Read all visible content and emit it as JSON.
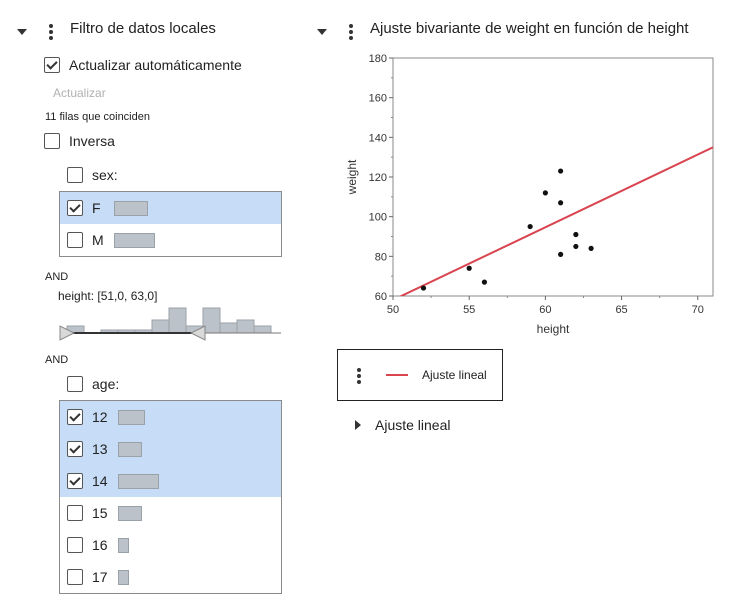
{
  "filter": {
    "title": "Filtro de datos locales",
    "auto_update_label": "Actualizar automáticamente",
    "update_button": "Actualizar",
    "matching_rows": "11 filas que coinciden",
    "inverse_label": "Inversa",
    "sex": {
      "label": "sex:",
      "items": [
        {
          "label": "F",
          "checked": true,
          "count": 5
        },
        {
          "label": "M",
          "checked": false,
          "count": 6
        }
      ]
    },
    "and1": "AND",
    "height": {
      "label": "height: [51,0, 63,0]"
    },
    "and2": "AND",
    "age": {
      "label": "age:",
      "items": [
        {
          "label": "12",
          "checked": true
        },
        {
          "label": "13",
          "checked": true
        },
        {
          "label": "14",
          "checked": true
        },
        {
          "label": "15",
          "checked": false
        },
        {
          "label": "16",
          "checked": false
        },
        {
          "label": "17",
          "checked": false
        }
      ]
    }
  },
  "report": {
    "title": "Ajuste bivariante de weight en función de height",
    "legend_label": "Ajuste lineal",
    "fit_section_label": "Ajuste lineal",
    "fit_line_color": "#d9444f"
  },
  "chart_data": {
    "type": "scatter",
    "title": "",
    "xlabel": "height",
    "ylabel": "weight",
    "xlim": [
      50,
      71
    ],
    "ylim": [
      60,
      180
    ],
    "xticks": [
      50,
      55,
      60,
      65,
      70
    ],
    "yticks": [
      60,
      80,
      100,
      120,
      140,
      160,
      180
    ],
    "points": [
      {
        "x": 52,
        "y": 64
      },
      {
        "x": 55,
        "y": 74
      },
      {
        "x": 56,
        "y": 67
      },
      {
        "x": 59,
        "y": 95
      },
      {
        "x": 60,
        "y": 112
      },
      {
        "x": 61,
        "y": 123
      },
      {
        "x": 61,
        "y": 107
      },
      {
        "x": 61,
        "y": 81
      },
      {
        "x": 62,
        "y": 91
      },
      {
        "x": 62,
        "y": 85
      },
      {
        "x": 63,
        "y": 84
      }
    ],
    "fit_line": {
      "name": "Ajuste lineal",
      "x": [
        50,
        71
      ],
      "y": [
        58,
        135
      ]
    },
    "grid": false
  }
}
